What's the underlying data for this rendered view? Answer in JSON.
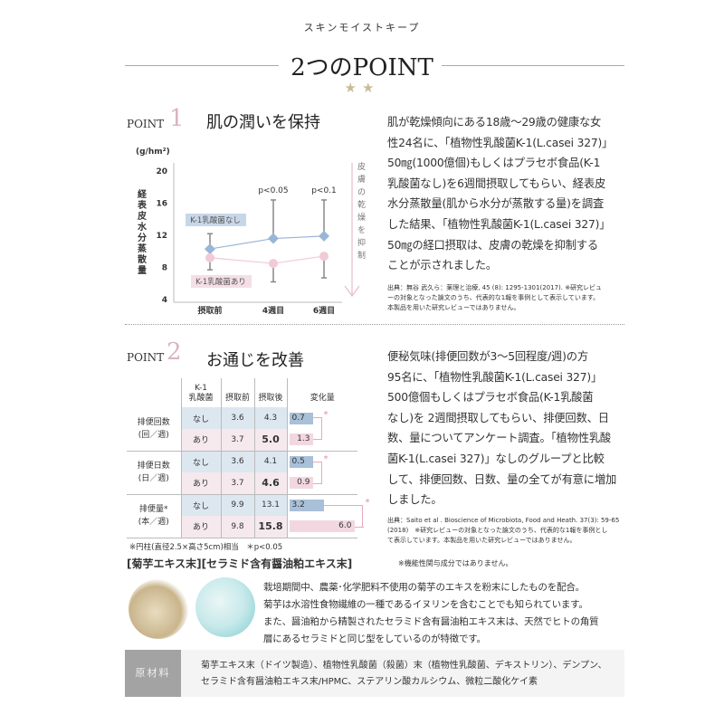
{
  "header": {
    "brand": "スキンモイストキープ",
    "title": "2つのPOINT",
    "stars": "★★"
  },
  "point1": {
    "label": "POINT",
    "number": "1",
    "title": "肌の潤いを保持",
    "paragraph_lines": [
      "肌が乾燥傾向にある18歳〜29歳の健康な女",
      "性24名に、「植物性乳酸菌K-1(L.casei 327)」",
      "50㎎(1000億個)もしくはプラセボ食品(K-1",
      "乳酸菌なし)を6週間摂取してもらい、経表皮",
      "水分蒸散量(肌から水分が蒸散する量)を調査",
      "した結果、「植物性乳酸菌K-1(L.casei 327)」",
      "50㎎の経口摂取は、皮膚の乾燥を抑制する",
      "ことが示されました。"
    ],
    "source_lines": [
      "出典：無谷 武久ら：薬理と治療, 45 (8): 1295-1301(2017). ※研究レビュ",
      "ーの対象となった論文のうち、代表的な1報を事例として表示しています。",
      "本製品を用いた研究レビューではありません。"
    ]
  },
  "chart_data": {
    "type": "line",
    "unit_label": "(g/hm²)",
    "ylabel": "経表皮水分蒸散量",
    "categories": [
      "摂取前",
      "4週目",
      "6週目"
    ],
    "yticks": [
      "20",
      "16",
      "12",
      "8",
      "4"
    ],
    "ylim": [
      4,
      20
    ],
    "series": [
      {
        "name": "K-1乳酸菌なし",
        "values": [
          10.3,
          11.6,
          11.9
        ],
        "error_upper": [
          12.2,
          16.4,
          16.4
        ],
        "color": "#9bb5d6",
        "marker": "diamond"
      },
      {
        "name": "K-1乳酸菌あり",
        "values": [
          9.2,
          8.5,
          9.4
        ],
        "error_lower": [
          7.7,
          6.2,
          6.7
        ],
        "color": "#f1c9d7",
        "marker": "circle"
      }
    ],
    "annotations": [
      "",
      "p<0.05",
      "p<0.1"
    ],
    "arrow_label": "皮膚の乾燥を抑制"
  },
  "point2": {
    "label": "POINT",
    "number": "2",
    "title": "お通じを改善",
    "table": {
      "headers": [
        "K-1\n乳酸菌",
        "摂取前",
        "摂取後",
        "変化量"
      ],
      "groups": [
        {
          "label": [
            "排便回数",
            "(回／週)"
          ],
          "rows": [
            [
              "なし",
              "3.6",
              "4.3",
              0.7
            ],
            [
              "あり",
              "3.7",
              "5.0",
              1.3
            ]
          ],
          "sig": "*"
        },
        {
          "label": [
            "排便日数",
            "(日／週)"
          ],
          "rows": [
            [
              "なし",
              "3.6",
              "4.1",
              0.5
            ],
            [
              "あり",
              "3.7",
              "4.6",
              0.9
            ]
          ],
          "sig": "*"
        },
        {
          "label": [
            "排便量*",
            "(本／週)"
          ],
          "rows": [
            [
              "なし",
              "9.9",
              "13.1",
              3.2
            ],
            [
              "あり",
              "9.8",
              "15.8",
              6.0
            ]
          ],
          "sig": "*"
        }
      ],
      "footnote": "※円柱(直径2.5×高さ5cm)相当　＊p<0.05"
    },
    "paragraph_lines": [
      "便秘気味(排便回数が3〜5回程度/週)の方",
      "95名に、「植物性乳酸菌K-1(L.casei 327)」",
      "500億個もしくはプラセボ食品(K-1乳酸菌",
      "なし)を 2週間摂取してもらい、排便回数、日",
      "数、量についてアンケート調査。「植物性乳酸",
      "菌K-1(L.casei 327)」なしのグループと比較",
      "して、排便回数、日数、量の全てが有意に増加",
      "しました。"
    ],
    "source_lines": [
      "出典：Saito et al . Bioscience of Microbiota, Food and Heath. 37(3): 59-65",
      "(2018)　※研究レビューの対象となった論文のうち、代表的な1報を事例とし",
      "て表示しています。本製品を用いた研究レビューではありません。"
    ]
  },
  "ingredients": {
    "heading": "[菊芋エキス末][セラミド含有醤油粕エキス末]",
    "note": "※機能性関与成分ではありません。",
    "lines": [
      "栽培期間中、農薬･化学肥料不使用の菊芋のエキスを粉末にしたものを配合。",
      "菊芋は水溶性食物繊維の一種であるイヌリンを含むことでも知られています。",
      "また、醤油粕から精製されたセラミド含有醤油粕エキス末は、天然でヒトの角質",
      "層にあるセラミドと同じ型をしているのが特徴です。"
    ]
  },
  "materials": {
    "label": "原材料",
    "lines": [
      "菊芋エキス末（ドイツ製造）、植物性乳酸菌（殺菌）末（植物性乳酸菌、デキストリン）、デンプン、",
      "セラミド含有醤油粕エキス末/HPMC、ステアリン酸カルシウム、微粒二酸化ケイ素"
    ]
  },
  "colors": {
    "accent_pink": "#dbb3c3",
    "blue": "#9bb5d6",
    "star": "#c9bb9a"
  }
}
